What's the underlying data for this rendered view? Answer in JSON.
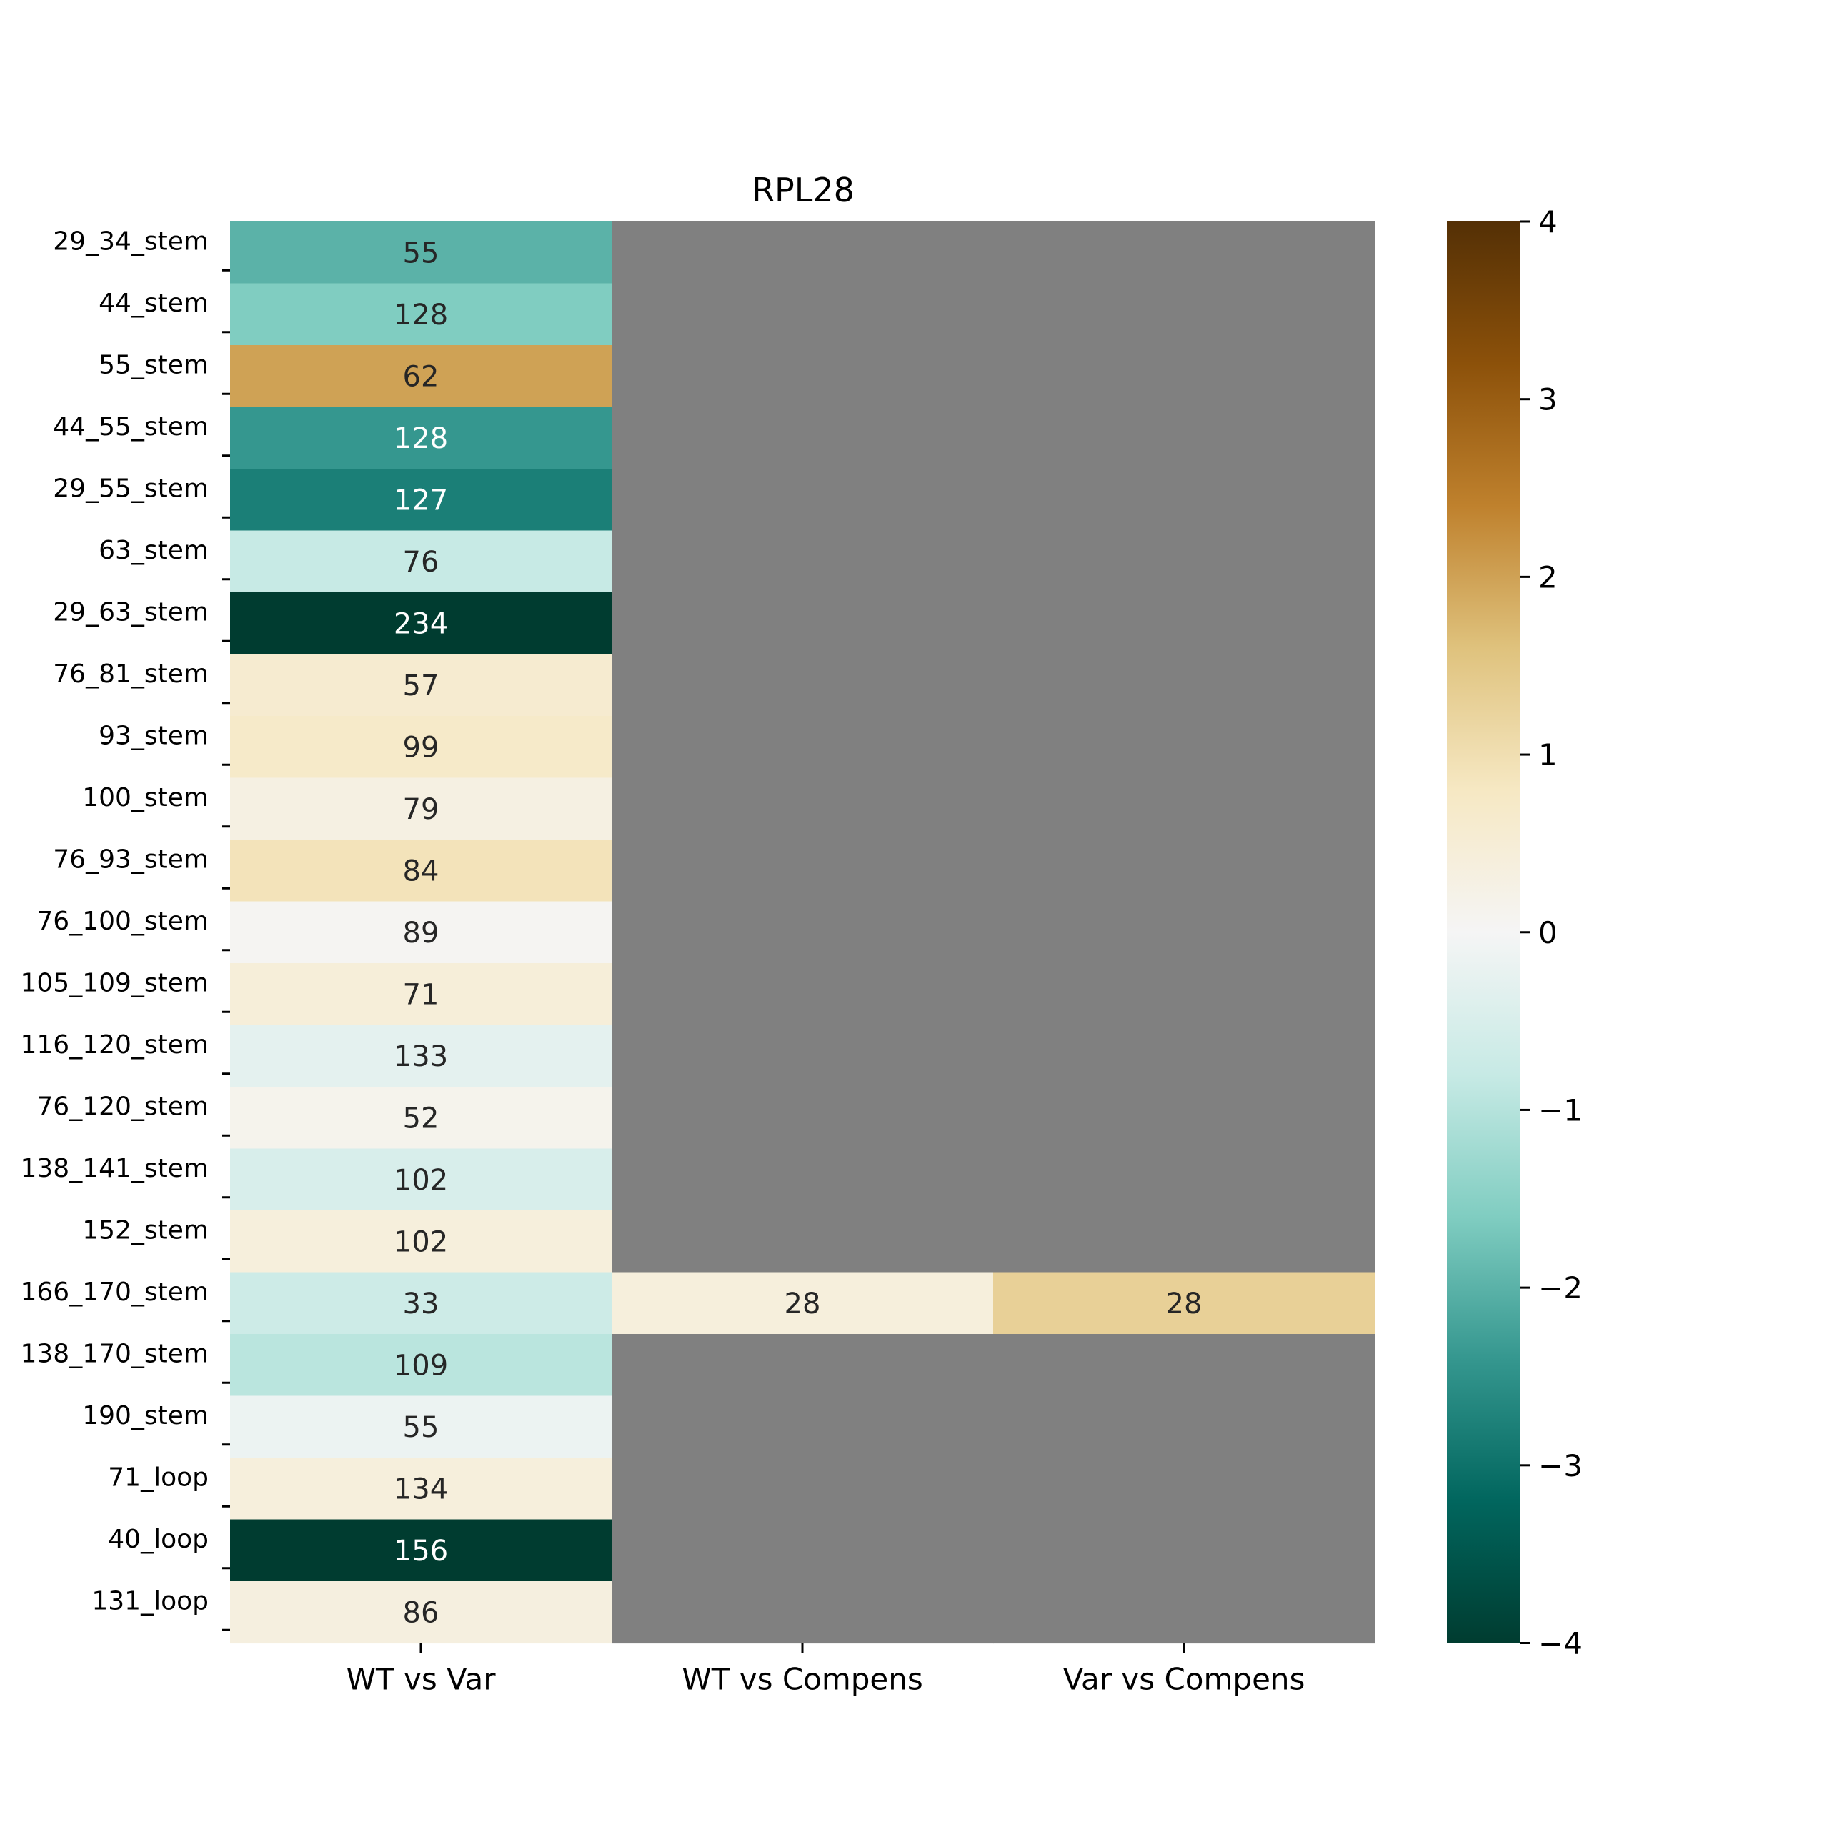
{
  "chart_data": {
    "type": "heatmap",
    "title": "RPL28",
    "xlabel": "",
    "ylabel": "",
    "columns": [
      "WT vs Var",
      "WT vs Compens",
      "Var vs Compens"
    ],
    "rows": [
      "29_34_stem",
      "44_stem",
      "55_stem",
      "44_55_stem",
      "29_55_stem",
      "63_stem",
      "29_63_stem",
      "76_81_stem",
      "93_stem",
      "100_stem",
      "76_93_stem",
      "76_100_stem",
      "105_109_stem",
      "116_120_stem",
      "76_120_stem",
      "138_141_stem",
      "152_stem",
      "166_170_stem",
      "138_170_stem",
      "190_stem",
      "71_loop",
      "40_loop",
      "131_loop"
    ],
    "values": [
      [
        -2.0,
        null,
        null
      ],
      [
        -1.6,
        null,
        null
      ],
      [
        2.0,
        null,
        null
      ],
      [
        -2.4,
        null,
        null
      ],
      [
        -2.8,
        null,
        null
      ],
      [
        -0.8,
        null,
        null
      ],
      [
        -4.0,
        null,
        null
      ],
      [
        0.6,
        null,
        null
      ],
      [
        0.7,
        null,
        null
      ],
      [
        0.3,
        null,
        null
      ],
      [
        0.9,
        null,
        null
      ],
      [
        0.05,
        null,
        null
      ],
      [
        0.45,
        null,
        null
      ],
      [
        -0.3,
        null,
        null
      ],
      [
        0.15,
        null,
        null
      ],
      [
        -0.5,
        null,
        null
      ],
      [
        0.4,
        null,
        null
      ],
      [
        -0.7,
        0.4,
        1.3
      ],
      [
        -0.95,
        null,
        null
      ],
      [
        -0.15,
        null,
        null
      ],
      [
        0.4,
        null,
        null
      ],
      [
        -4.0,
        null,
        null
      ],
      [
        0.35,
        null,
        null
      ]
    ],
    "annotations": [
      [
        "55",
        "",
        ""
      ],
      [
        "128",
        "",
        ""
      ],
      [
        "62",
        "",
        ""
      ],
      [
        "128",
        "",
        ""
      ],
      [
        "127",
        "",
        ""
      ],
      [
        "76",
        "",
        ""
      ],
      [
        "234",
        "",
        ""
      ],
      [
        "57",
        "",
        ""
      ],
      [
        "99",
        "",
        ""
      ],
      [
        "79",
        "",
        ""
      ],
      [
        "84",
        "",
        ""
      ],
      [
        "89",
        "",
        ""
      ],
      [
        "71",
        "",
        ""
      ],
      [
        "133",
        "",
        ""
      ],
      [
        "52",
        "",
        ""
      ],
      [
        "102",
        "",
        ""
      ],
      [
        "102",
        "",
        ""
      ],
      [
        "33",
        "28",
        "28"
      ],
      [
        "109",
        "",
        ""
      ],
      [
        "55",
        "",
        ""
      ],
      [
        "134",
        "",
        ""
      ],
      [
        "156",
        "",
        ""
      ],
      [
        "86",
        "",
        ""
      ]
    ],
    "missing_color": "#808080",
    "colormap": "BrBG_r",
    "colorbar": {
      "range": [
        -4,
        4
      ],
      "ticks": [
        4,
        3,
        2,
        1,
        0,
        -1,
        -2,
        -3,
        -4
      ],
      "tick_labels": [
        "4",
        "3",
        "2",
        "1",
        "0",
        "−1",
        "−2",
        "−3",
        "−4"
      ]
    },
    "colors": {
      "dark_text": "#262626",
      "light_text": "#ffffff",
      "axis": "#000000"
    },
    "legend": "right"
  }
}
